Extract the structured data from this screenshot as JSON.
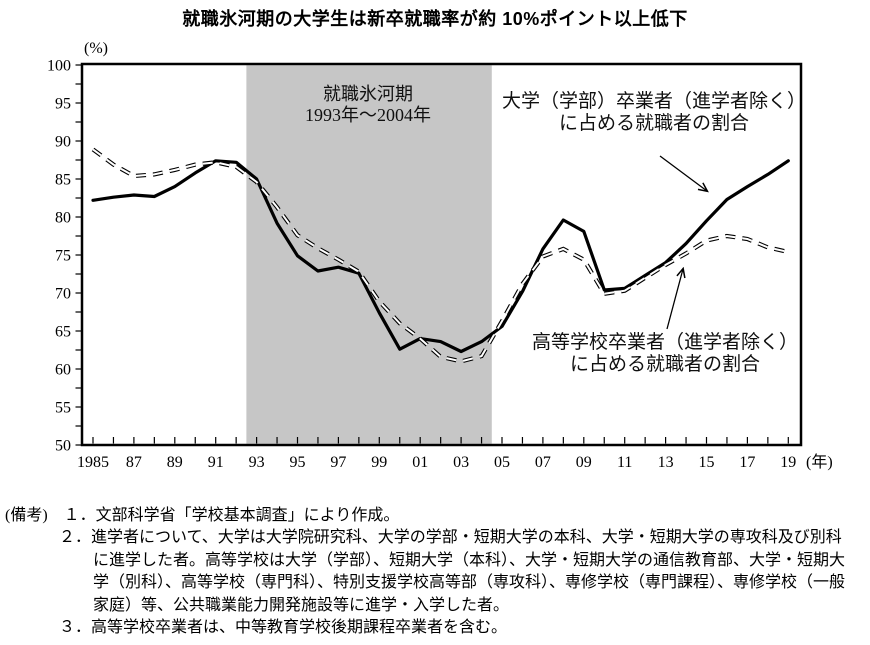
{
  "chart_data": {
    "type": "line",
    "title": "就職氷河期の大学生は新卒就職率が約 10%ポイント以上低下",
    "y_axis_unit": "(%)",
    "x_axis_unit": "(年)",
    "ylim": [
      50,
      100
    ],
    "y_tick_step": 5,
    "y_minor_tick_step": 2.5,
    "x_start": 1985,
    "x_end": 2019,
    "x_tick_labels": [
      "1985",
      "87",
      "89",
      "91",
      "93",
      "95",
      "97",
      "99",
      "01",
      "03",
      "05",
      "07",
      "09",
      "11",
      "13",
      "15",
      "17",
      "19"
    ],
    "grid": false,
    "shaded_region": {
      "from": 1992.5,
      "to": 2004.5,
      "color": "#c6c6c6",
      "label_line1": "就職氷河期",
      "label_line2": "1993年～2004年"
    },
    "series": [
      {
        "name": "大学（学部）卒業者（進学者除く）に占める就職者の割合",
        "label_line1": "大学（学部）卒業者（進学者除く）",
        "label_line2": "に占める就職者の割合",
        "style": "solid",
        "color": "#000000",
        "values": [
          82.2,
          82.6,
          82.9,
          82.7,
          84.0,
          85.8,
          87.4,
          87.2,
          85.0,
          79.2,
          74.9,
          72.9,
          73.4,
          72.6,
          67.4,
          62.6,
          64.0,
          63.6,
          62.3,
          63.6,
          65.6,
          70.2,
          75.8,
          79.6,
          78.1,
          70.4,
          70.6,
          72.3,
          74.0,
          76.5,
          79.5,
          82.3,
          84.0,
          85.6,
          87.4
        ]
      },
      {
        "name": "高等学校卒業者（進学者除く）に占める就職者の割合",
        "label_line1": "高等学校卒業者（進学者除く）",
        "label_line2": "に占める就職者の割合",
        "style": "dashed",
        "color": "#000000",
        "values": [
          88.9,
          86.9,
          85.4,
          85.6,
          86.2,
          86.9,
          87.2,
          86.6,
          84.6,
          81.3,
          77.6,
          75.9,
          74.4,
          72.8,
          68.9,
          66.0,
          64.0,
          61.6,
          61.0,
          61.7,
          66.3,
          71.2,
          74.8,
          75.8,
          74.4,
          69.9,
          70.3,
          72.0,
          73.7,
          75.2,
          76.9,
          77.5,
          77.1,
          76.0,
          75.4
        ]
      }
    ]
  },
  "notes": {
    "lines": [
      "(備考)　１．文部科学省「学校基本調査」により作成。",
      "２．進学者について、大学は大学院研究科、大学の学部・短期大学の本科、大学・短期大学の専攻科及び別科",
      "に進学した者。高等学校は大学（学部）、短期大学（本科）、大学・短期大学の通信教育部、大学・短期大",
      "学（別科）、高等学校（専門科）、特別支援学校高等部（専攻科）、専修学校（専門課程）、専修学校（一般",
      "家庭）等、公共職業能力開発施設等に進学・入学した者。",
      "３．高等学校卒業者は、中等教育学校後期課程卒業者を含む。"
    ]
  }
}
